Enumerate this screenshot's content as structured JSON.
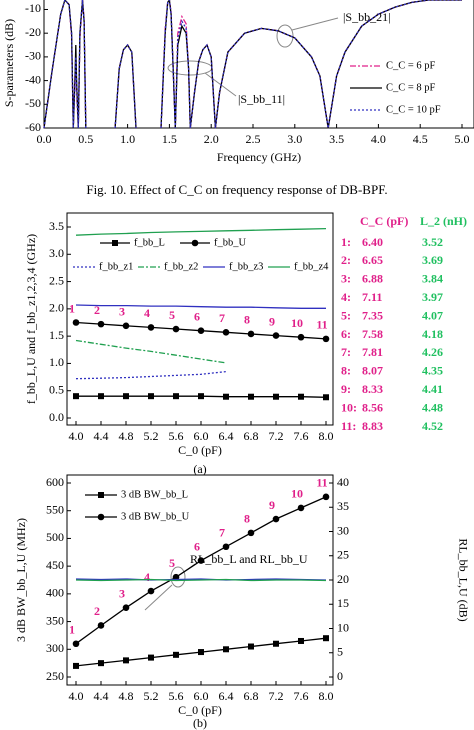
{
  "chart_data": [
    {
      "type": "line",
      "ylabel": "S-parameters (dB)",
      "xlabel": "Frequency (GHz)",
      "xlim": [
        0,
        5
      ],
      "ylim": [
        -60,
        -6
      ],
      "xticks": [
        {
          "value": 0,
          "label": "0.0"
        },
        0.5,
        {
          "value": 1,
          "label": "1.0"
        },
        1.5,
        {
          "value": 2,
          "label": "2.0"
        },
        2.5,
        {
          "value": 3,
          "label": "3.0"
        },
        3.5,
        {
          "value": 4,
          "label": "4.0"
        },
        4.5,
        {
          "value": 5,
          "label": "5.0"
        }
      ],
      "yticks": [
        -10,
        -20,
        -30,
        -40,
        -50,
        -60
      ],
      "grid": false,
      "legend": "lower right",
      "annotations": [
        "|S_bb_21|",
        "|S_bb_11|"
      ],
      "x": [
        0.0,
        0.1,
        0.2,
        0.25,
        0.3,
        0.33,
        0.35,
        0.37,
        0.38,
        0.39,
        0.41,
        0.43,
        0.46,
        0.48,
        0.5,
        0.52,
        0.6,
        0.8,
        0.85,
        0.9,
        0.95,
        1.0,
        1.05,
        1.1,
        1.2,
        1.4,
        1.45,
        1.48,
        1.5,
        1.52,
        1.55,
        1.57,
        1.6,
        1.65,
        1.7,
        1.73,
        1.75,
        1.8,
        1.85,
        1.9,
        1.95,
        2.0,
        2.05,
        2.1,
        2.2,
        2.4,
        2.6,
        2.8,
        3.0,
        3.2,
        3.3,
        3.4,
        3.5,
        3.6,
        3.8,
        4.0,
        4.2,
        4.4,
        4.6,
        4.8,
        5.0
      ],
      "series": [
        {
          "name": "C_C = 6 pF",
          "color": "#e0208a",
          "dash": "dashdot",
          "values": [
            -60,
            -35,
            -12,
            -6,
            -8,
            -22,
            -60,
            -38,
            -35,
            -45,
            -60,
            -22,
            -6,
            -14,
            -60,
            null,
            null,
            null,
            -60,
            -35,
            -27,
            -25,
            -28,
            -60,
            null,
            -60,
            -18,
            -7,
            -6,
            -11,
            -40,
            -60,
            -20,
            -13,
            -16,
            -35,
            -60,
            -45,
            -32,
            -27,
            -25,
            -30,
            -60,
            -45,
            -28,
            -20,
            -18,
            -19,
            -22,
            -30,
            -38,
            -60,
            -38,
            -28,
            -17,
            -12,
            -9,
            -7,
            -6,
            -6,
            -6
          ]
        },
        {
          "name": "C_C = 8 pF",
          "color": "#000000",
          "dash": "solid",
          "values": [
            -60,
            -35,
            -12,
            -6,
            -8,
            -20,
            -60,
            -40,
            -25,
            -40,
            -60,
            -20,
            -6,
            -15,
            -60,
            null,
            null,
            null,
            -60,
            -35,
            -27,
            -25,
            -28,
            -60,
            null,
            -60,
            -20,
            -7,
            -6,
            -12,
            -40,
            -60,
            -25,
            -17,
            -20,
            -35,
            -60,
            -45,
            -32,
            -27,
            -25,
            -30,
            -60,
            -45,
            -28,
            -20,
            -18,
            -19,
            -22,
            -30,
            -38,
            -60,
            -38,
            -28,
            -17,
            -12,
            -9,
            -7,
            -6,
            -6,
            -6
          ]
        },
        {
          "name": "C_C = 10 pF",
          "color": "#3030c0",
          "dash": "dotted",
          "values": [
            -60,
            -35,
            -12,
            -6,
            -8,
            -20,
            -60,
            -42,
            -30,
            -42,
            -60,
            -20,
            -6,
            -15,
            -60,
            null,
            null,
            null,
            -60,
            -35,
            -27,
            -25,
            -28,
            -60,
            null,
            -60,
            -19,
            -7,
            -6,
            -12,
            -40,
            -60,
            -22,
            -15,
            -18,
            -35,
            -60,
            -45,
            -32,
            -27,
            -25,
            -30,
            -60,
            -45,
            -28,
            -20,
            -18,
            -19,
            -22,
            -30,
            -38,
            -60,
            -38,
            -28,
            -17,
            -12,
            -9,
            -7,
            -6,
            -6,
            -6
          ]
        }
      ]
    },
    {
      "type": "line",
      "ylabel": "f_bb_L,U and f_bb_z1,2,3,4 (GHz)",
      "xlabel": "C_0 (pF)",
      "xlim": [
        4,
        8
      ],
      "ylim": [
        0,
        3.5
      ],
      "xticks": [
        {
          "value": 4,
          "label": "4.0"
        },
        4.4,
        4.8,
        5.2,
        5.6,
        {
          "value": 6,
          "label": "6.0"
        },
        6.4,
        6.8,
        7.2,
        7.6,
        {
          "value": 8,
          "label": "8.0"
        }
      ],
      "yticks": [
        {
          "value": 0,
          "label": "0.0"
        },
        0.5,
        {
          "value": 1,
          "label": "1.0"
        },
        1.5,
        {
          "value": 2,
          "label": "2.0"
        },
        2.5,
        {
          "value": 3,
          "label": "3.0"
        },
        3.5
      ],
      "grid": false,
      "legend": "upper left",
      "x": [
        4.0,
        4.4,
        4.8,
        5.2,
        5.6,
        6.0,
        6.4,
        6.8,
        7.2,
        7.6,
        8.0
      ],
      "series": [
        {
          "name": "f_bb_L",
          "color": "#000000",
          "dash": "solid",
          "marker": "square",
          "values": [
            0.4,
            0.4,
            0.4,
            0.4,
            0.4,
            0.4,
            0.39,
            0.39,
            0.39,
            0.39,
            0.38
          ]
        },
        {
          "name": "f_bb_U",
          "color": "#000000",
          "dash": "solid",
          "marker": "circle",
          "values": [
            1.75,
            1.72,
            1.69,
            1.66,
            1.63,
            1.6,
            1.57,
            1.54,
            1.51,
            1.48,
            1.45
          ],
          "labels": [
            "1",
            "2",
            "3",
            "4",
            "5",
            "6",
            "7",
            "8",
            "9",
            "10",
            "11"
          ]
        },
        {
          "name": "f_bb_z1",
          "color": "#3030c0",
          "dash": "dotted",
          "values": [
            0.72,
            0.73,
            0.74,
            0.76,
            0.78,
            0.8,
            0.85,
            null,
            null,
            null,
            null
          ]
        },
        {
          "name": "f_bb_z2",
          "color": "#20a050",
          "dash": "dashdot",
          "values": [
            1.42,
            1.35,
            1.28,
            1.22,
            1.15,
            1.08,
            1.01,
            null,
            null,
            null,
            null
          ]
        },
        {
          "name": "f_bb_z3",
          "color": "#3030c0",
          "dash": "solid",
          "values": [
            2.07,
            2.06,
            2.06,
            2.05,
            2.05,
            2.04,
            2.03,
            2.03,
            2.02,
            2.01,
            2.01
          ]
        },
        {
          "name": "f_bb_z4",
          "color": "#20a050",
          "dash": "solid",
          "values": [
            3.35,
            3.37,
            3.38,
            3.4,
            3.41,
            3.42,
            3.43,
            3.44,
            3.45,
            3.46,
            3.47
          ]
        }
      ]
    },
    {
      "type": "line",
      "ylabel": "3 dB BW_bb_L,U (MHz)",
      "y2label": "RL_bb_L,U (dB)",
      "xlabel": "C_0 (pF)",
      "xlim": [
        4,
        8
      ],
      "ylim": [
        250,
        600
      ],
      "y2lim": [
        0,
        40
      ],
      "xticks": [
        {
          "value": 4,
          "label": "4.0"
        },
        4.4,
        4.8,
        5.2,
        5.6,
        {
          "value": 6,
          "label": "6.0"
        },
        6.4,
        6.8,
        7.2,
        7.6,
        {
          "value": 8,
          "label": "8.0"
        }
      ],
      "yticks": [
        250,
        300,
        350,
        400,
        450,
        500,
        550,
        600
      ],
      "y2ticks": [
        0,
        5,
        10,
        15,
        20,
        25,
        30,
        35,
        40
      ],
      "grid": false,
      "legend": "upper left",
      "annotations": [
        "RL_bb_L and RL_bb_U"
      ],
      "x": [
        4.0,
        4.4,
        4.8,
        5.2,
        5.6,
        6.0,
        6.4,
        6.8,
        7.2,
        7.6,
        8.0
      ],
      "series": [
        {
          "name": "3 dB BW_bb_L",
          "color": "#000000",
          "dash": "solid",
          "marker": "square",
          "values": [
            270,
            275,
            280,
            285,
            290,
            295,
            300,
            305,
            310,
            315,
            320
          ]
        },
        {
          "name": "3 dB BW_bb_U",
          "color": "#000000",
          "dash": "solid",
          "marker": "circle",
          "values": [
            310,
            343,
            375,
            405,
            430,
            460,
            485,
            510,
            535,
            555,
            575
          ],
          "labels": [
            "1",
            "2",
            "3",
            "4",
            "5",
            "6",
            "7",
            "8",
            "9",
            "10",
            "11"
          ]
        },
        {
          "name": "RL_bb_L",
          "color": "#3030c0",
          "dash": "solid",
          "axis": "y2",
          "legend": false,
          "values": [
            20.2,
            20.1,
            20.2,
            20.0,
            20.1,
            20.2,
            20.0,
            20.1,
            20.2,
            20.1,
            20.0
          ]
        },
        {
          "name": "RL_bb_U",
          "color": "#20a050",
          "dash": "solid",
          "axis": "y2",
          "legend": false,
          "values": [
            20.0,
            19.9,
            20.0,
            20.1,
            19.9,
            20.0,
            20.1,
            19.9,
            20.0,
            20.0,
            19.9
          ]
        }
      ]
    }
  ],
  "table": {
    "headers": [
      "C_C (pF)",
      "L_2 (nH)"
    ],
    "rows": [
      [
        "1:",
        "6.40",
        "3.52"
      ],
      [
        "2:",
        "6.65",
        "3.69"
      ],
      [
        "3:",
        "6.88",
        "3.84"
      ],
      [
        "4:",
        "7.11",
        "3.97"
      ],
      [
        "5:",
        "7.35",
        "4.07"
      ],
      [
        "6:",
        "7.58",
        "4.18"
      ],
      [
        "7:",
        "7.81",
        "4.26"
      ],
      [
        "8:",
        "8.07",
        "4.35"
      ],
      [
        "9:",
        "8.33",
        "4.41"
      ],
      [
        "10:",
        "8.56",
        "4.48"
      ],
      [
        "11:",
        "8.83",
        "4.52"
      ]
    ]
  },
  "captions": {
    "fig": "Fig. 10.   Effect of C_C on frequency response of DB-BPF.",
    "a": "(a)",
    "b": "(b)"
  }
}
